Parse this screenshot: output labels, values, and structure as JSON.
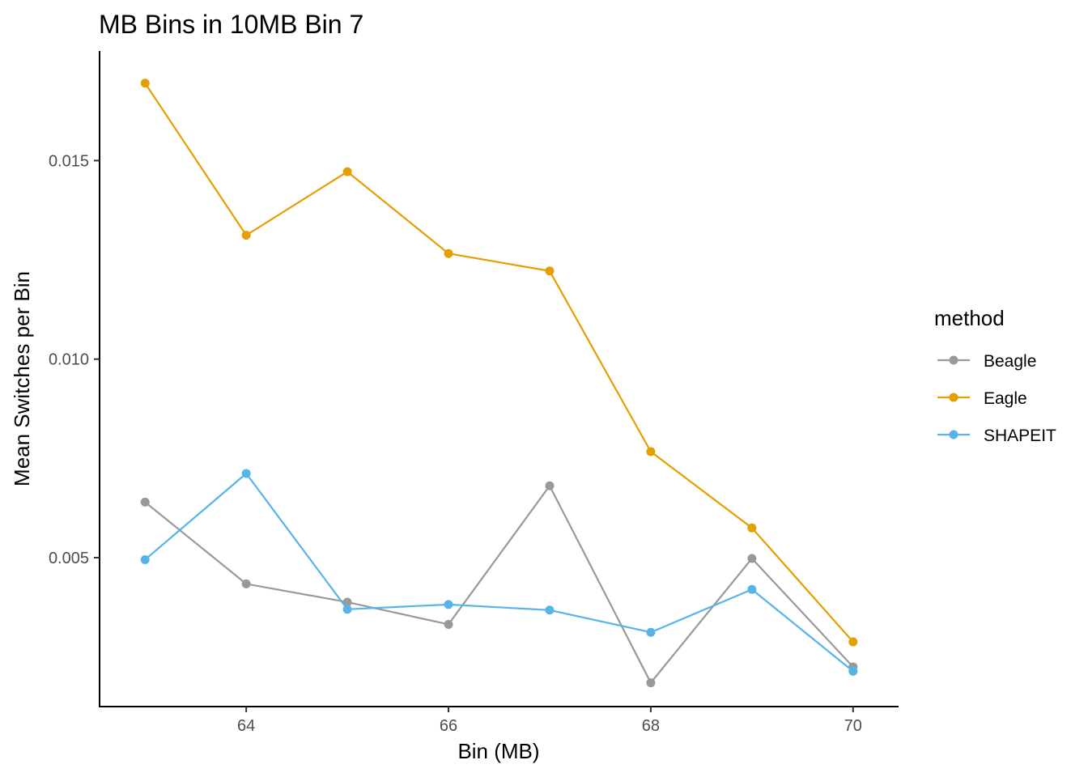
{
  "chart_data": {
    "type": "line",
    "title": "MB Bins in 10MB Bin 7",
    "xlabel": "Bin (MB)",
    "ylabel": "Mean Switches per Bin",
    "x": [
      63,
      64,
      65,
      66,
      67,
      68,
      69,
      70
    ],
    "xlim": [
      62.55,
      70.45
    ],
    "ylim": [
      0.00125,
      0.01776
    ],
    "x_ticks": [
      64,
      66,
      68,
      70
    ],
    "x_tick_labels": [
      "64",
      "66",
      "68",
      "70"
    ],
    "y_ticks": [
      0.005,
      0.01,
      0.015
    ],
    "y_tick_labels": [
      "0.005",
      "0.010",
      "0.015"
    ],
    "grid": false,
    "legend": {
      "title": "method",
      "placement": "right"
    },
    "series": [
      {
        "name": "Beagle",
        "color": "#999999",
        "values": [
          0.0064,
          0.00434,
          0.00388,
          0.00332,
          0.00681,
          0.00185,
          0.00498,
          0.00225
        ]
      },
      {
        "name": "Eagle",
        "color": "#E69F00",
        "values": [
          0.01695,
          0.01312,
          0.01472,
          0.01266,
          0.01222,
          0.00767,
          0.00575,
          0.00288
        ]
      },
      {
        "name": "SHAPEIT",
        "color": "#56B4E9",
        "values": [
          0.00495,
          0.00712,
          0.0037,
          0.00382,
          0.00368,
          0.00312,
          0.0042,
          0.00214
        ]
      }
    ]
  }
}
